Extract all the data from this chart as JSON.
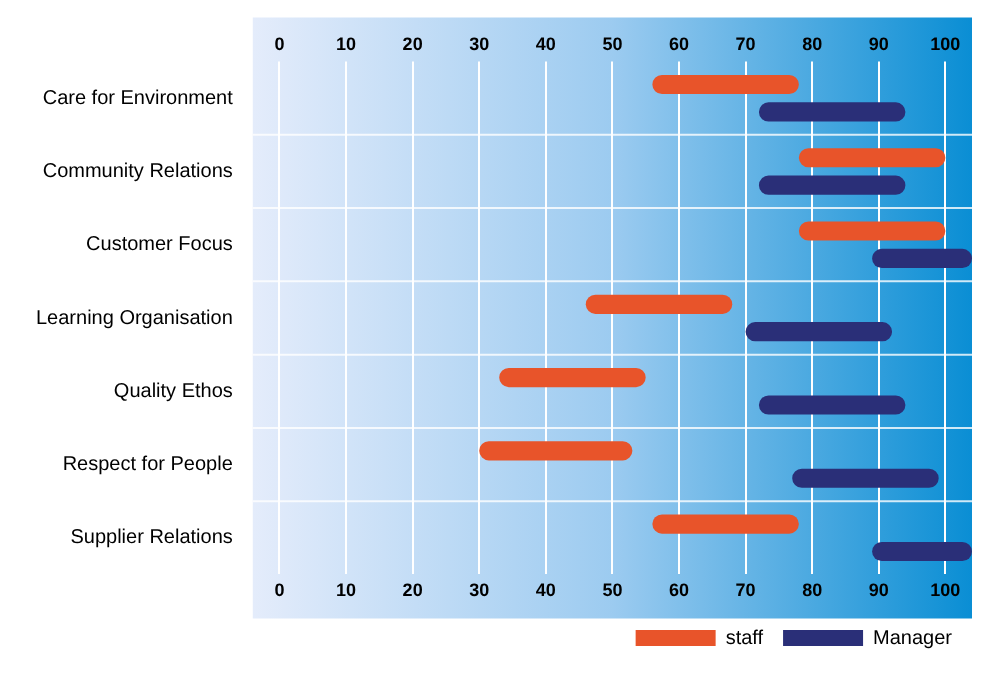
{
  "chart_data": {
    "type": "bar",
    "orientation": "horizontal",
    "categories": [
      "Care for Environment",
      "Community Relations",
      "Customer Focus",
      "Learning Organisation",
      "Quality Ethos",
      "Respect for People",
      "Supplier Relations"
    ],
    "series": [
      {
        "name": "staff",
        "color": "#e8542a",
        "base": [
          56,
          78,
          78,
          46,
          33,
          30,
          56
        ],
        "values": [
          22,
          22,
          22,
          22,
          22,
          23,
          22
        ]
      },
      {
        "name": "Manager",
        "color": "#2a2f78",
        "base": [
          72,
          72,
          89,
          70,
          72,
          77,
          89
        ],
        "values": [
          22,
          22,
          15,
          22,
          22,
          22,
          15
        ]
      }
    ],
    "xlim": [
      -4,
      104
    ],
    "xticks": [
      0,
      10,
      20,
      30,
      40,
      50,
      60,
      70,
      80,
      90,
      100
    ],
    "x2lim": [
      -4,
      104
    ],
    "x2ticks": [
      0,
      10,
      20,
      30,
      40,
      50,
      60,
      70,
      80,
      90,
      100
    ],
    "grid": "x",
    "legend": "bottom right"
  }
}
